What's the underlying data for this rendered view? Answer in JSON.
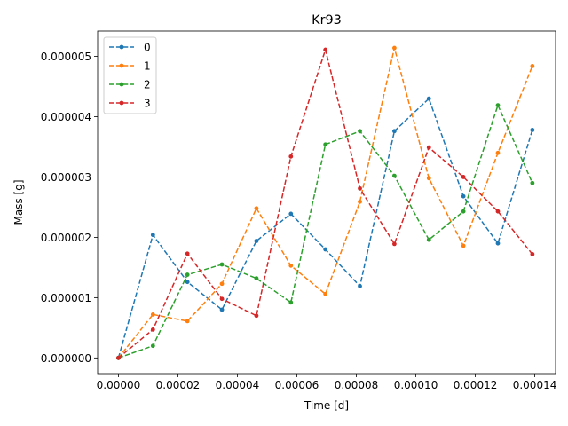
{
  "chart_data": {
    "type": "line",
    "title": "Kr93",
    "xlabel": "Time [d]",
    "ylabel": "Mass [g]",
    "xlim": [
      -7e-06,
      0.000147
    ],
    "ylim": [
      -2.6e-07,
      5.42e-06
    ],
    "xticks": [
      0,
      2e-05,
      4e-05,
      6e-05,
      8e-05,
      0.0001,
      0.00012,
      0.00014
    ],
    "xtick_labels": [
      "0.00000",
      "0.00002",
      "0.00004",
      "0.00006",
      "0.00008",
      "0.00010",
      "0.00012",
      "0.00014"
    ],
    "yticks": [
      0,
      1e-06,
      2e-06,
      3e-06,
      4e-06,
      5e-06
    ],
    "ytick_labels": [
      "0.000000",
      "0.000001",
      "0.000002",
      "0.000003",
      "0.000004",
      "0.000005"
    ],
    "grid": false,
    "legend_position": "top-left",
    "line_style": "dashed",
    "marker": "dot",
    "x": [
      0,
      1.16e-05,
      2.32e-05,
      3.48e-05,
      4.64e-05,
      5.8e-05,
      6.96e-05,
      8.12e-05,
      9.28e-05,
      0.0001044,
      0.000116,
      0.0001276,
      0.0001392
    ],
    "series": [
      {
        "name": "0",
        "color": "#1f77b4",
        "values": [
          0,
          2.04e-06,
          1.26e-06,
          8e-07,
          1.94e-06,
          2.39e-06,
          1.8e-06,
          1.19e-06,
          3.76e-06,
          4.3e-06,
          2.68e-06,
          1.9e-06,
          3.78e-06
        ]
      },
      {
        "name": "1",
        "color": "#ff7f0e",
        "values": [
          0,
          7.2e-07,
          6.1e-07,
          1.23e-06,
          2.48e-06,
          1.53e-06,
          1.06e-06,
          2.59e-06,
          5.14e-06,
          2.98e-06,
          1.86e-06,
          3.4e-06,
          4.84e-06
        ]
      },
      {
        "name": "2",
        "color": "#2ca02c",
        "values": [
          0,
          2e-07,
          1.38e-06,
          1.55e-06,
          1.32e-06,
          9.2e-07,
          3.54e-06,
          3.76e-06,
          3.02e-06,
          1.96e-06,
          2.43e-06,
          4.19e-06,
          2.9e-06
        ]
      },
      {
        "name": "3",
        "color": "#d62728",
        "values": [
          0,
          4.7e-07,
          1.73e-06,
          9.8e-07,
          7e-07,
          3.34e-06,
          5.11e-06,
          2.81e-06,
          1.89e-06,
          3.49e-06,
          3e-06,
          2.43e-06,
          1.72e-06
        ]
      }
    ]
  }
}
